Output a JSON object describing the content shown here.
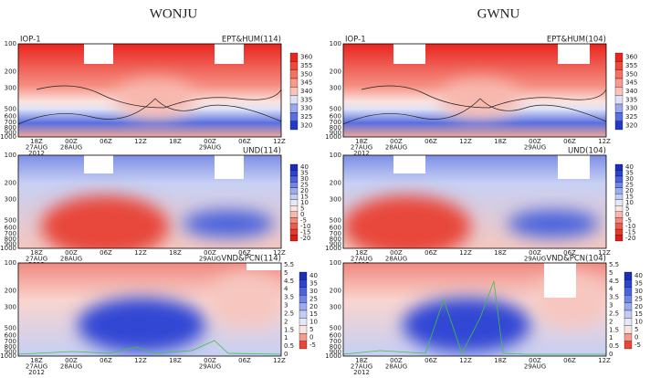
{
  "columns": [
    {
      "title": "WONJU",
      "panels": [
        {
          "iop": "IOP-1",
          "label": "EPT&HUM(114)",
          "colorbar": [
            360,
            355,
            350,
            345,
            340,
            335,
            330,
            325,
            320
          ]
        },
        {
          "label": "UND(114)",
          "colorbar": [
            40,
            35,
            30,
            25,
            20,
            15,
            10,
            5,
            0,
            -5,
            -10,
            -15,
            -20
          ]
        },
        {
          "label": "VND&PCN(114)",
          "colorbar": [
            40,
            35,
            30,
            25,
            20,
            15,
            10,
            5,
            0,
            -5
          ],
          "right_axis": [
            5.5,
            5,
            4.5,
            4,
            3.5,
            3,
            2.5,
            2,
            1.5,
            1,
            0.5,
            0
          ]
        }
      ]
    },
    {
      "title": "GWNU",
      "panels": [
        {
          "iop": "IOP-1",
          "label": "EPT&HUM(104)",
          "colorbar": [
            360,
            355,
            350,
            345,
            340,
            335,
            330,
            325,
            320
          ]
        },
        {
          "label": "UND(104)",
          "colorbar": [
            40,
            35,
            30,
            25,
            20,
            15,
            10,
            5,
            0,
            -5,
            -10,
            -15,
            -20
          ]
        },
        {
          "label": "VND&PCN(104)",
          "colorbar": [
            40,
            35,
            30,
            25,
            20,
            15,
            10,
            5,
            0,
            -5
          ],
          "right_axis": [
            5.5,
            5,
            4.5,
            4,
            3.5,
            3,
            2.5,
            2,
            1.5,
            1,
            0.5,
            0
          ]
        }
      ]
    }
  ],
  "y_axis": [
    100,
    200,
    300,
    500,
    600,
    700,
    800,
    900,
    1000
  ],
  "x_axis": [
    [
      "18Z",
      "27AUG",
      "2012"
    ],
    [
      "00Z",
      "28AUG"
    ],
    [
      "06Z"
    ],
    [
      "12Z"
    ],
    [
      "18Z"
    ],
    [
      "00Z",
      "29AUG"
    ],
    [
      "06Z"
    ],
    [
      "12Z"
    ]
  ]
}
